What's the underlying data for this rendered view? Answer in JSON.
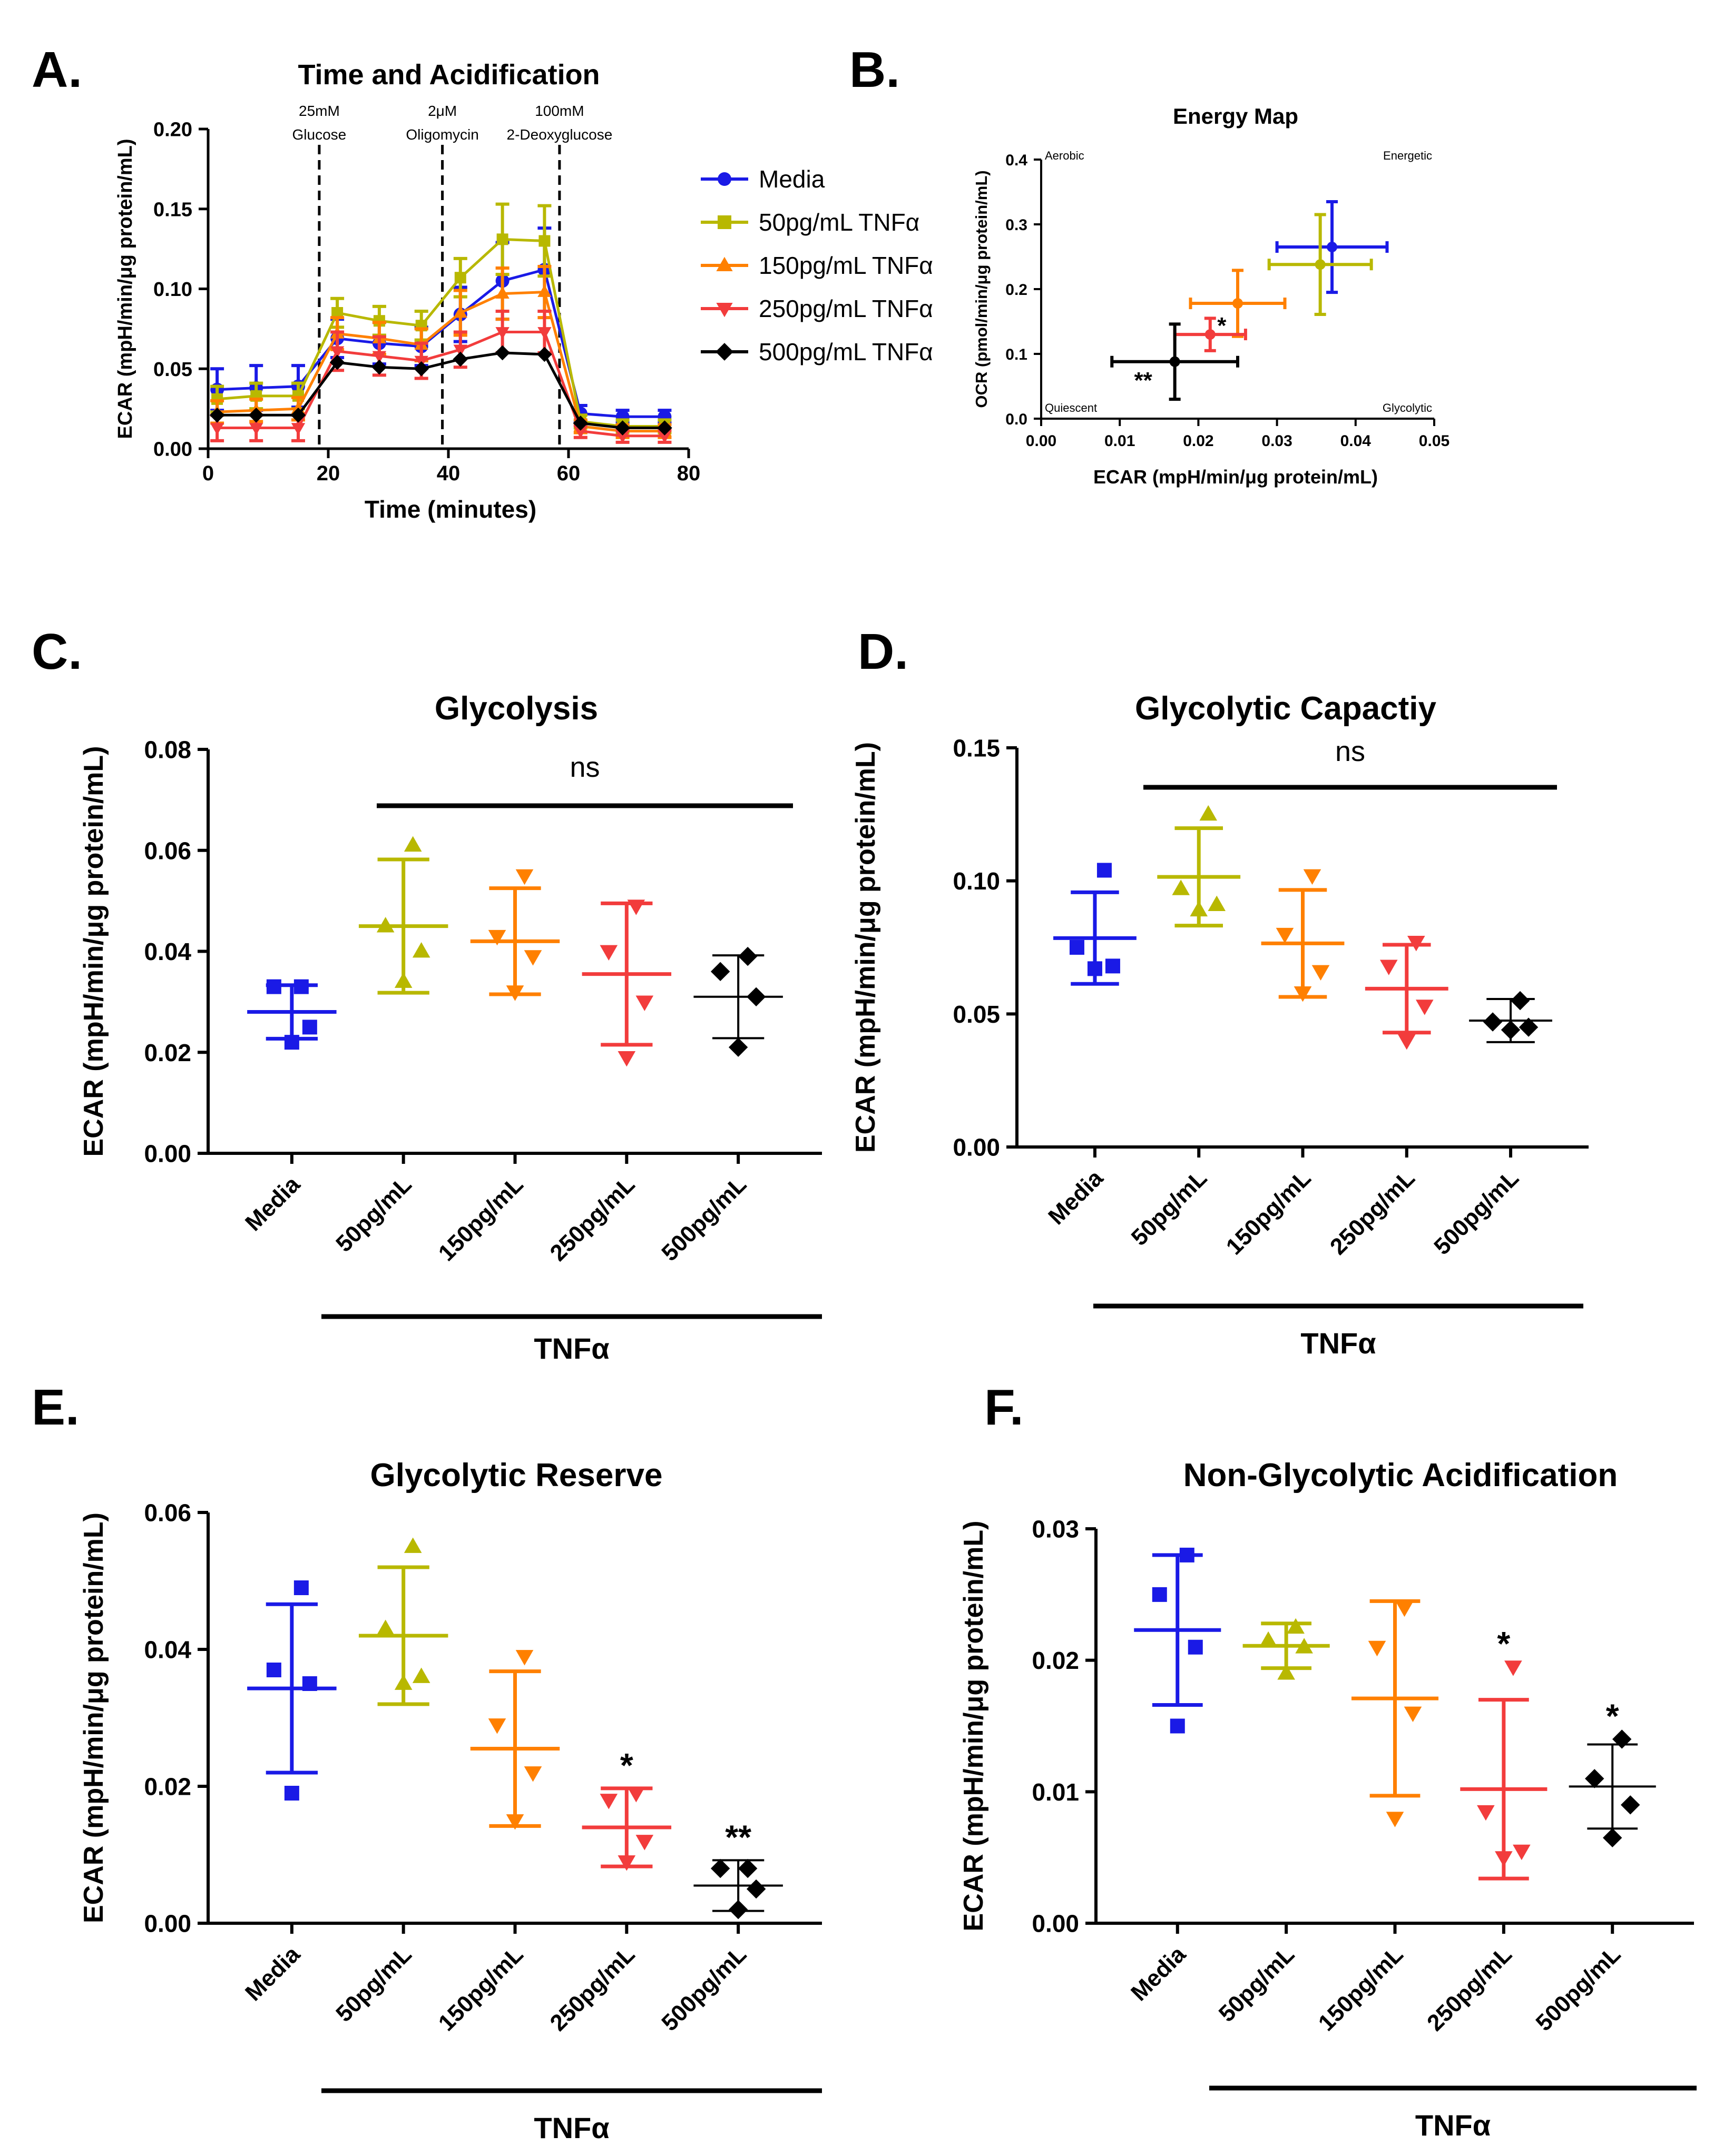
{
  "figure": {
    "panels": [
      {
        "id": "A",
        "label": "A.",
        "title": "Time and Acidification",
        "ylabel": "ECAR (mpH/min/μg protein/mL)",
        "xlabel": "Time (minutes)",
        "yticks": [
          "0.00",
          "0.05",
          "0.10",
          "0.15",
          "0.20"
        ],
        "xticks": [
          "0",
          "20",
          "40",
          "60",
          "80"
        ],
        "injections": [
          {
            "line1": "25mM",
            "line2": "Glucose"
          },
          {
            "line1": "2μM",
            "line2": "Oligomycin"
          },
          {
            "line1": "100mM",
            "line2": "2-Deoxyglucose"
          }
        ]
      },
      {
        "id": "B",
        "label": "B.",
        "title": "Energy Map",
        "ylabel": "OCR (pmol/min/μg protein/mL)",
        "xlabel": "ECAR (mpH/min/μg protein/mL)",
        "yticks": [
          "0.0",
          "0.1",
          "0.2",
          "0.3",
          "0.4"
        ],
        "xticks": [
          "0.00",
          "0.01",
          "0.02",
          "0.03",
          "0.04",
          "0.05"
        ],
        "quadrants": {
          "top_left": "Aerobic",
          "top_right": "Energetic",
          "bottom_left": "Quiescent",
          "bottom_right": "Glycolytic"
        }
      },
      {
        "id": "C",
        "label": "C.",
        "title": "Glycolysis",
        "ylabel": "ECAR (mpH/min/μg protein/mL)",
        "yticks": [
          "0.00",
          "0.02",
          "0.04",
          "0.06",
          "0.08"
        ],
        "bracket_text": "ns",
        "group_label": "TNFα"
      },
      {
        "id": "D",
        "label": "D.",
        "title": "Glycolytic Capactiy",
        "ylabel": "ECAR (mpH/min/μg protein/mL)",
        "yticks": [
          "0.00",
          "0.05",
          "0.10",
          "0.15"
        ],
        "bracket_text": "ns",
        "group_label": "TNFα"
      },
      {
        "id": "E",
        "label": "E.",
        "title": "Glycolytic Reserve",
        "ylabel": "ECAR (mpH/min/μg protein/mL)",
        "yticks": [
          "0.00",
          "0.02",
          "0.04",
          "0.06"
        ],
        "group_label": "TNFα"
      },
      {
        "id": "F",
        "label": "F.",
        "title": "Non-Glycolytic Acidification",
        "ylabel": "ECAR (mpH/min/μg protein/mL)",
        "yticks": [
          "0.00",
          "0.01",
          "0.02",
          "0.03"
        ],
        "group_label": "TNFα"
      }
    ],
    "legend": [
      "Media",
      "50pg/mL TNFα",
      "150pg/mL TNFα",
      "250pg/mL TNFα",
      "500pg/mL TNFα"
    ],
    "categories": [
      "Media",
      "50pg/mL",
      "150pg/mL",
      "250pg/mL",
      "500pg/mL"
    ]
  },
  "colors": {
    "Media": "#1a1ae6",
    "50pg": "#b8b800",
    "150pg": "#ff8000",
    "250pg": "#f23c3c",
    "500pg": "#000000"
  },
  "chart_data": [
    {
      "panel": "A",
      "type": "line",
      "title": "Time and Acidification",
      "xlabel": "Time (minutes)",
      "ylabel": "ECAR (mpH/min/μg protein/mL)",
      "xlim": [
        0,
        80
      ],
      "ylim": [
        0,
        0.2
      ],
      "x": [
        1.5,
        8,
        15,
        21.5,
        28.5,
        35.5,
        42,
        49,
        56,
        62,
        69,
        76
      ],
      "injection_times": [
        18.5,
        39,
        58.5
      ],
      "series": [
        {
          "name": "Media",
          "marker": "circle",
          "color": "#1a1ae6",
          "values": [
            0.037,
            0.038,
            0.039,
            0.069,
            0.066,
            0.064,
            0.084,
            0.105,
            0.112,
            0.022,
            0.02,
            0.02
          ],
          "err": [
            0.013,
            0.014,
            0.013,
            0.012,
            0.013,
            0.012,
            0.017,
            0.024,
            0.026,
            0.005,
            0.004,
            0.004
          ]
        },
        {
          "name": "50pg/mL TNFα",
          "marker": "square",
          "color": "#b8b800",
          "values": [
            0.031,
            0.033,
            0.033,
            0.085,
            0.08,
            0.077,
            0.107,
            0.131,
            0.13,
            0.017,
            0.014,
            0.014
          ],
          "err": [
            0.008,
            0.008,
            0.008,
            0.009,
            0.009,
            0.009,
            0.012,
            0.022,
            0.022,
            0.004,
            0.004,
            0.004
          ]
        },
        {
          "name": "150pg/mL TNFα",
          "marker": "triangle-up",
          "color": "#ff8000",
          "values": [
            0.023,
            0.024,
            0.025,
            0.072,
            0.069,
            0.065,
            0.085,
            0.097,
            0.098,
            0.014,
            0.011,
            0.011
          ],
          "err": [
            0.007,
            0.007,
            0.007,
            0.01,
            0.01,
            0.01,
            0.014,
            0.016,
            0.016,
            0.004,
            0.004,
            0.004
          ]
        },
        {
          "name": "250pg/mL TNFα",
          "marker": "triangle-down",
          "color": "#f23c3c",
          "values": [
            0.013,
            0.013,
            0.013,
            0.061,
            0.058,
            0.055,
            0.062,
            0.073,
            0.073,
            0.011,
            0.008,
            0.008
          ],
          "err": [
            0.008,
            0.008,
            0.008,
            0.012,
            0.012,
            0.011,
            0.011,
            0.013,
            0.013,
            0.004,
            0.004,
            0.004
          ]
        },
        {
          "name": "500pg/mL TNFα",
          "marker": "diamond",
          "color": "#000000",
          "values": [
            0.021,
            0.021,
            0.021,
            0.054,
            0.051,
            0.05,
            0.056,
            0.06,
            0.059,
            0.016,
            0.013,
            0.013
          ],
          "err": [
            0,
            0,
            0,
            0,
            0,
            0,
            0,
            0,
            0,
            0,
            0,
            0
          ]
        }
      ]
    },
    {
      "panel": "B",
      "type": "scatter",
      "title": "Energy Map",
      "xlabel": "ECAR (mpH/min/μg protein/mL)",
      "ylabel": "OCR (pmol/min/μg protein/mL)",
      "xlim": [
        0,
        0.05
      ],
      "ylim": [
        0,
        0.4
      ],
      "points": [
        {
          "name": "Media",
          "color": "#1a1ae6",
          "x": 0.037,
          "y": 0.265,
          "xerr": 0.007,
          "yerr": 0.07,
          "annotation": ""
        },
        {
          "name": "50pg/mL TNFα",
          "color": "#b8b800",
          "x": 0.0355,
          "y": 0.238,
          "xerr": 0.0065,
          "yerr": 0.077,
          "annotation": ""
        },
        {
          "name": "150pg/mL TNFα",
          "color": "#ff8000",
          "x": 0.025,
          "y": 0.178,
          "xerr": 0.006,
          "yerr": 0.051,
          "annotation": ""
        },
        {
          "name": "250pg/mL TNFα",
          "color": "#f23c3c",
          "x": 0.0215,
          "y": 0.13,
          "xerr": 0.0045,
          "yerr": 0.025,
          "annotation": "*"
        },
        {
          "name": "500pg/mL TNFα",
          "color": "#000000",
          "x": 0.017,
          "y": 0.088,
          "xerr": 0.008,
          "yerr": 0.058,
          "annotation": "**"
        }
      ]
    },
    {
      "panel": "C",
      "type": "scatter",
      "title": "Glycolysis",
      "ylabel": "ECAR (mpH/min/μg protein/mL)",
      "ylim": [
        0,
        0.08
      ],
      "categories": [
        "Media",
        "50pg/mL",
        "150pg/mL",
        "250pg/mL",
        "500pg/mL"
      ],
      "groups": [
        {
          "points": [
            0.033,
            0.033,
            0.025,
            0.022
          ],
          "mean": 0.028,
          "sd": 0.0053,
          "sig": ""
        },
        {
          "points": [
            0.061,
            0.045,
            0.04,
            0.034
          ],
          "mean": 0.045,
          "sd": 0.0132,
          "sig": ""
        },
        {
          "points": [
            0.055,
            0.043,
            0.039,
            0.032
          ],
          "mean": 0.042,
          "sd": 0.0105,
          "sig": ""
        },
        {
          "points": [
            0.049,
            0.04,
            0.03,
            0.019
          ],
          "mean": 0.0355,
          "sd": 0.014,
          "sig": ""
        },
        {
          "points": [
            0.039,
            0.036,
            0.031,
            0.021
          ],
          "mean": 0.031,
          "sd": 0.0082,
          "sig": ""
        }
      ],
      "bracket": "ns"
    },
    {
      "panel": "D",
      "type": "scatter",
      "title": "Glycolytic Capactiy",
      "ylabel": "ECAR (mpH/min/μg protein/mL)",
      "ylim": [
        0,
        0.15
      ],
      "categories": [
        "Media",
        "50pg/mL",
        "150pg/mL",
        "250pg/mL",
        "500pg/mL"
      ],
      "groups": [
        {
          "points": [
            0.104,
            0.075,
            0.068,
            0.067
          ],
          "mean": 0.0785,
          "sd": 0.0172,
          "sig": ""
        },
        {
          "points": [
            0.125,
            0.097,
            0.091,
            0.089
          ],
          "mean": 0.1015,
          "sd": 0.0183,
          "sig": ""
        },
        {
          "points": [
            0.102,
            0.08,
            0.066,
            0.058
          ],
          "mean": 0.0765,
          "sd": 0.0201,
          "sig": ""
        },
        {
          "points": [
            0.077,
            0.068,
            0.053,
            0.04
          ],
          "mean": 0.0595,
          "sd": 0.0165,
          "sig": ""
        },
        {
          "points": [
            0.055,
            0.047,
            0.045,
            0.044
          ],
          "mean": 0.0475,
          "sd": 0.0081,
          "sig": ""
        }
      ],
      "bracket": "ns"
    },
    {
      "panel": "E",
      "type": "scatter",
      "title": "Glycolytic Reserve",
      "ylabel": "ECAR (mpH/min/μg protein/mL)",
      "ylim": [
        0,
        0.06
      ],
      "categories": [
        "Media",
        "50pg/mL",
        "150pg/mL",
        "250pg/mL",
        "500pg/mL"
      ],
      "groups": [
        {
          "points": [
            0.049,
            0.037,
            0.035,
            0.019
          ],
          "mean": 0.0343,
          "sd": 0.0123,
          "sig": ""
        },
        {
          "points": [
            0.055,
            0.043,
            0.036,
            0.035
          ],
          "mean": 0.042,
          "sd": 0.01,
          "sig": ""
        },
        {
          "points": [
            0.039,
            0.029,
            0.022,
            0.015
          ],
          "mean": 0.0255,
          "sd": 0.0113,
          "sig": ""
        },
        {
          "points": [
            0.019,
            0.018,
            0.012,
            0.009
          ],
          "mean": 0.014,
          "sd": 0.0057,
          "sig": "*"
        },
        {
          "points": [
            0.008,
            0.008,
            0.005,
            0.002
          ],
          "mean": 0.0055,
          "sd": 0.0037,
          "sig": "**"
        }
      ]
    },
    {
      "panel": "F",
      "type": "scatter",
      "title": "Non-Glycolytic Acidification",
      "ylabel": "ECAR (mpH/min/μg protein/mL)",
      "ylim": [
        0,
        0.03
      ],
      "categories": [
        "Media",
        "50pg/mL",
        "150pg/mL",
        "250pg/mL",
        "500pg/mL"
      ],
      "groups": [
        {
          "points": [
            0.028,
            0.025,
            0.021,
            0.015
          ],
          "mean": 0.0223,
          "sd": 0.0057,
          "sig": ""
        },
        {
          "points": [
            0.0225,
            0.0215,
            0.021,
            0.019
          ],
          "mean": 0.0211,
          "sd": 0.0017,
          "sig": ""
        },
        {
          "points": [
            0.024,
            0.021,
            0.016,
            0.008
          ],
          "mean": 0.0171,
          "sd": 0.0074,
          "sig": ""
        },
        {
          "points": [
            0.0195,
            0.0085,
            0.0055,
            0.005
          ],
          "mean": 0.0102,
          "sd": 0.0068,
          "sig": "*"
        },
        {
          "points": [
            0.014,
            0.011,
            0.009,
            0.0065
          ],
          "mean": 0.0104,
          "sd": 0.0032,
          "sig": "*"
        }
      ]
    }
  ]
}
